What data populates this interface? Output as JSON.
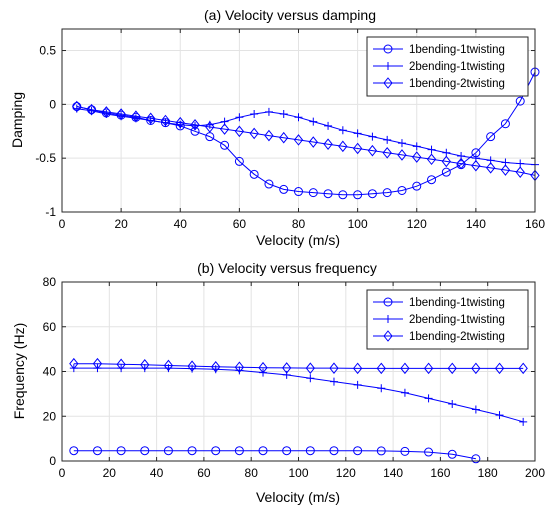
{
  "chart_data": [
    {
      "type": "line",
      "title": "(a) Velocity versus damping",
      "xlabel": "Velocity (m/s)",
      "ylabel": "Damping",
      "xlim": [
        0,
        160
      ],
      "ylim": [
        -1,
        0.7
      ],
      "xticks": [
        0,
        20,
        40,
        60,
        80,
        100,
        120,
        140,
        160
      ],
      "yticks": [
        -1,
        -0.5,
        0,
        0.5
      ],
      "xtick_labels": [
        "0",
        "20",
        "40",
        "60",
        "80",
        "100",
        "120",
        "140",
        "160"
      ],
      "ytick_labels": [
        "-1",
        "-0.5",
        "0",
        "0.5"
      ],
      "grid": true,
      "legend_position": "top-right",
      "color": "#0000ff",
      "series": [
        {
          "name": "1bending-1twisting",
          "marker": "circle",
          "x": [
            5,
            10,
            15,
            20,
            25,
            30,
            35,
            40,
            45,
            50,
            55,
            60,
            65,
            70,
            75,
            80,
            85,
            90,
            95,
            100,
            105,
            110,
            115,
            120,
            125,
            130,
            135,
            140,
            145,
            150,
            155,
            160
          ],
          "y": [
            -0.02,
            -0.05,
            -0.08,
            -0.1,
            -0.12,
            -0.15,
            -0.17,
            -0.2,
            -0.25,
            -0.3,
            -0.38,
            -0.53,
            -0.65,
            -0.74,
            -0.79,
            -0.81,
            -0.82,
            -0.83,
            -0.84,
            -0.84,
            -0.83,
            -0.82,
            -0.8,
            -0.76,
            -0.7,
            -0.63,
            -0.56,
            -0.45,
            -0.3,
            -0.18,
            0.03,
            0.3
          ]
        },
        {
          "name": "2bending-1twisting",
          "marker": "plus",
          "x": [
            5,
            10,
            15,
            20,
            25,
            30,
            35,
            40,
            45,
            50,
            55,
            60,
            65,
            70,
            75,
            80,
            85,
            90,
            95,
            100,
            105,
            110,
            115,
            120,
            125,
            130,
            135,
            140,
            145,
            150,
            155,
            160
          ],
          "y": [
            -0.04,
            -0.06,
            -0.09,
            -0.11,
            -0.13,
            -0.15,
            -0.17,
            -0.19,
            -0.2,
            -0.19,
            -0.16,
            -0.12,
            -0.09,
            -0.07,
            -0.09,
            -0.12,
            -0.16,
            -0.2,
            -0.24,
            -0.27,
            -0.3,
            -0.33,
            -0.36,
            -0.39,
            -0.42,
            -0.45,
            -0.48,
            -0.5,
            -0.52,
            -0.54,
            -0.55,
            -0.56
          ]
        },
        {
          "name": "1bending-2twisting",
          "marker": "diamond",
          "x": [
            5,
            10,
            15,
            20,
            25,
            30,
            35,
            40,
            45,
            50,
            55,
            60,
            65,
            70,
            75,
            80,
            85,
            90,
            95,
            100,
            105,
            110,
            115,
            120,
            125,
            130,
            135,
            140,
            145,
            150,
            155,
            160
          ],
          "y": [
            -0.02,
            -0.05,
            -0.07,
            -0.09,
            -0.11,
            -0.13,
            -0.15,
            -0.17,
            -0.19,
            -0.21,
            -0.23,
            -0.25,
            -0.27,
            -0.29,
            -0.31,
            -0.33,
            -0.35,
            -0.37,
            -0.39,
            -0.41,
            -0.43,
            -0.45,
            -0.47,
            -0.49,
            -0.51,
            -0.53,
            -0.55,
            -0.57,
            -0.59,
            -0.61,
            -0.63,
            -0.66
          ]
        }
      ]
    },
    {
      "type": "line",
      "title": "(b) Velocity versus frequency",
      "xlabel": "Velocity (m/s)",
      "ylabel": "Frequency (Hz)",
      "xlim": [
        0,
        200
      ],
      "ylim": [
        0,
        80
      ],
      "xticks": [
        0,
        20,
        40,
        60,
        80,
        100,
        120,
        140,
        160,
        180,
        200
      ],
      "yticks": [
        0,
        20,
        40,
        60,
        80
      ],
      "xtick_labels": [
        "0",
        "20",
        "40",
        "60",
        "80",
        "100",
        "120",
        "140",
        "160",
        "180",
        "200"
      ],
      "ytick_labels": [
        "0",
        "20",
        "40",
        "60",
        "80"
      ],
      "grid": true,
      "legend_position": "top-right",
      "color": "#0000ff",
      "series": [
        {
          "name": "1bending-1twisting",
          "marker": "circle",
          "x": [
            5,
            15,
            25,
            35,
            45,
            55,
            65,
            75,
            85,
            95,
            105,
            115,
            125,
            135,
            145,
            155,
            165,
            175
          ],
          "y": [
            4.6,
            4.6,
            4.6,
            4.6,
            4.6,
            4.6,
            4.6,
            4.6,
            4.6,
            4.6,
            4.6,
            4.6,
            4.6,
            4.5,
            4.3,
            4.0,
            3.0,
            1.0
          ]
        },
        {
          "name": "2bending-1twisting",
          "marker": "plus",
          "x": [
            5,
            15,
            25,
            35,
            45,
            55,
            65,
            75,
            85,
            95,
            105,
            115,
            125,
            135,
            145,
            155,
            165,
            175,
            185,
            195
          ],
          "y": [
            41.5,
            41.5,
            41.5,
            41.5,
            41.5,
            41.3,
            41.0,
            40.5,
            39.5,
            38.5,
            37.0,
            35.5,
            34.0,
            32.5,
            30.5,
            28.0,
            25.5,
            23.0,
            20.5,
            17.5
          ]
        },
        {
          "name": "1bending-2twisting",
          "marker": "diamond",
          "x": [
            5,
            15,
            25,
            35,
            45,
            55,
            65,
            75,
            85,
            95,
            105,
            115,
            125,
            135,
            145,
            155,
            165,
            175,
            185,
            195
          ],
          "y": [
            43.5,
            43.5,
            43.2,
            43.0,
            42.7,
            42.4,
            42.1,
            41.9,
            41.7,
            41.6,
            41.5,
            41.5,
            41.4,
            41.4,
            41.4,
            41.4,
            41.4,
            41.4,
            41.4,
            41.4
          ]
        }
      ]
    }
  ]
}
